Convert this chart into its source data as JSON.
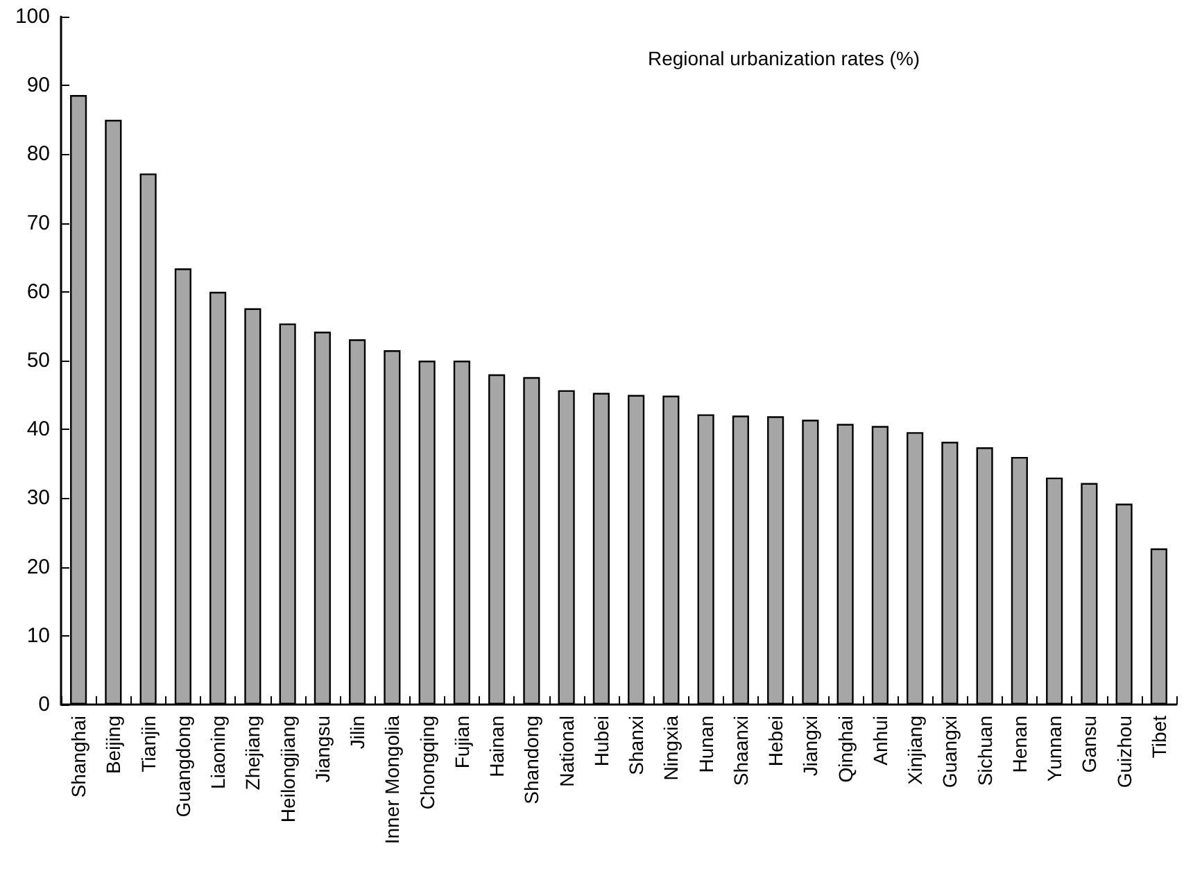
{
  "chart_data": {
    "type": "bar",
    "title": "Regional urbanization rates (%)",
    "categories": [
      "Shanghai",
      "Beijing",
      "Tianjin",
      "Guangdong",
      "Liaoning",
      "Zhejiang",
      "Heilongjiang",
      "Jiangsu",
      "Jilin",
      "Inner Mongolia",
      "Chongqing",
      "Fujian",
      "Hainan",
      "Shandong",
      "National",
      "Hubei",
      "Shanxi",
      "Ningxia",
      "Hunan",
      "Shaanxi",
      "Hebei",
      "Jiangxi",
      "Qinghai",
      "Anhui",
      "Xinjiang",
      "Guangxi",
      "Sichuan",
      "Henan",
      "Yunnan",
      "Gansu",
      "Guizhou",
      "Tibet"
    ],
    "values": [
      88.6,
      85.0,
      77.2,
      63.4,
      60.0,
      57.6,
      55.4,
      54.2,
      53.1,
      51.5,
      50.0,
      50.0,
      48.0,
      47.6,
      45.7,
      45.3,
      45.0,
      44.9,
      42.2,
      42.0,
      41.9,
      41.4,
      40.8,
      40.5,
      39.6,
      38.2,
      37.4,
      36.0,
      33.0,
      32.2,
      29.2,
      22.7
    ],
    "color": "#a6a6a6",
    "ylim": [
      0,
      100
    ],
    "yticks": [
      0,
      10,
      20,
      30,
      40,
      50,
      60,
      70,
      80,
      90,
      100
    ],
    "grid": false
  }
}
